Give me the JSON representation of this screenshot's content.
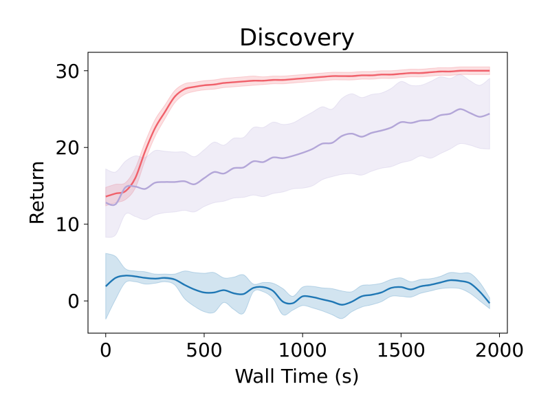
{
  "chart_data": {
    "type": "line",
    "title": "Discovery",
    "xlabel": "Wall Time (s)",
    "ylabel": "Return",
    "xlim": [
      -90,
      2040
    ],
    "ylim": [
      -4.2,
      32.4
    ],
    "xticks": [
      0,
      500,
      1000,
      1500,
      2000
    ],
    "xtick_labels": [
      "0",
      "500",
      "1000",
      "1500",
      "2000"
    ],
    "yticks": [
      0,
      10,
      20,
      30
    ],
    "ytick_labels": [
      "0",
      "10",
      "20",
      "30"
    ],
    "grid": false,
    "legend": "none",
    "series": [
      {
        "name": "red",
        "color": "#f0606a",
        "band_color": "#f0606a",
        "x": [
          0,
          50,
          100,
          150,
          200,
          250,
          300,
          350,
          400,
          450,
          500,
          550,
          600,
          650,
          700,
          750,
          800,
          850,
          900,
          950,
          1000,
          1050,
          1100,
          1150,
          1200,
          1250,
          1300,
          1350,
          1400,
          1450,
          1500,
          1550,
          1600,
          1650,
          1700,
          1750,
          1800,
          1850,
          1900,
          1950
        ],
        "mean": [
          13.6,
          14.0,
          14.3,
          16.0,
          19.5,
          22.5,
          24.6,
          26.6,
          27.6,
          27.9,
          28.1,
          28.2,
          28.4,
          28.5,
          28.6,
          28.7,
          28.7,
          28.8,
          28.8,
          28.9,
          29.0,
          29.1,
          29.2,
          29.3,
          29.3,
          29.3,
          29.4,
          29.4,
          29.5,
          29.5,
          29.6,
          29.7,
          29.7,
          29.8,
          29.9,
          29.9,
          30.0,
          30.0,
          30.0,
          30.0
        ],
        "lower": [
          12.4,
          12.8,
          13.2,
          14.7,
          18.3,
          21.4,
          23.7,
          25.8,
          26.9,
          27.3,
          27.5,
          27.6,
          27.8,
          27.9,
          28.0,
          28.1,
          28.2,
          28.3,
          28.3,
          28.4,
          28.5,
          28.6,
          28.7,
          28.8,
          28.8,
          28.8,
          28.9,
          28.9,
          29.0,
          29.0,
          29.1,
          29.2,
          29.2,
          29.3,
          29.4,
          29.4,
          29.5,
          29.5,
          29.5,
          29.5
        ],
        "upper": [
          14.8,
          15.2,
          15.4,
          17.3,
          20.7,
          23.6,
          25.5,
          27.4,
          28.3,
          28.5,
          28.7,
          28.8,
          29.0,
          29.1,
          29.2,
          29.3,
          29.2,
          29.3,
          29.3,
          29.4,
          29.5,
          29.6,
          29.7,
          29.8,
          29.8,
          29.8,
          29.9,
          29.9,
          30.0,
          30.0,
          30.1,
          30.2,
          30.2,
          30.3,
          30.4,
          30.4,
          30.5,
          30.5,
          30.5,
          30.5
        ]
      },
      {
        "name": "purple",
        "color": "#b3a6d8",
        "band_color": "#b3a6d8",
        "x": [
          0,
          50,
          100,
          150,
          200,
          250,
          300,
          350,
          400,
          450,
          500,
          550,
          600,
          650,
          700,
          750,
          800,
          850,
          900,
          950,
          1000,
          1050,
          1100,
          1150,
          1200,
          1250,
          1300,
          1350,
          1400,
          1450,
          1500,
          1550,
          1600,
          1650,
          1700,
          1750,
          1800,
          1850,
          1900,
          1950
        ],
        "mean": [
          12.8,
          12.6,
          14.8,
          14.9,
          14.6,
          15.4,
          15.5,
          15.5,
          15.6,
          15.2,
          16.0,
          16.8,
          16.6,
          17.3,
          17.4,
          18.2,
          18.1,
          18.7,
          18.6,
          18.9,
          19.3,
          19.8,
          20.5,
          20.6,
          21.5,
          21.8,
          21.4,
          21.9,
          22.2,
          22.6,
          23.3,
          23.2,
          23.5,
          23.6,
          24.2,
          24.4,
          25.0,
          24.5,
          24.0,
          24.4
        ],
        "lower": [
          8.3,
          8.6,
          11.3,
          11.0,
          10.6,
          11.2,
          11.5,
          11.6,
          11.8,
          11.6,
          12.3,
          12.8,
          13.0,
          13.4,
          13.5,
          13.8,
          13.6,
          14.0,
          14.2,
          14.6,
          14.7,
          15.0,
          15.8,
          16.2,
          16.5,
          16.6,
          16.4,
          16.9,
          17.3,
          17.5,
          18.0,
          18.3,
          18.9,
          18.6,
          19.2,
          19.8,
          20.5,
          20.3,
          19.9,
          19.8
        ],
        "upper": [
          17.2,
          16.8,
          18.2,
          18.9,
          18.7,
          19.6,
          19.5,
          19.4,
          19.4,
          18.8,
          19.7,
          20.7,
          20.3,
          21.2,
          21.3,
          22.6,
          22.6,
          23.3,
          23.0,
          23.2,
          23.9,
          24.6,
          25.3,
          25.0,
          26.4,
          27.0,
          26.5,
          26.9,
          27.1,
          27.7,
          28.6,
          28.1,
          28.1,
          28.6,
          29.2,
          29.0,
          29.5,
          28.7,
          28.1,
          29.0
        ]
      },
      {
        "name": "blue",
        "color": "#1f77b4",
        "band_color": "#1f77b4",
        "x": [
          0,
          50,
          100,
          150,
          200,
          250,
          300,
          350,
          400,
          450,
          500,
          550,
          600,
          650,
          700,
          750,
          800,
          850,
          900,
          950,
          1000,
          1050,
          1100,
          1150,
          1200,
          1250,
          1300,
          1350,
          1400,
          1450,
          1500,
          1550,
          1600,
          1650,
          1700,
          1750,
          1800,
          1850,
          1900,
          1950
        ],
        "mean": [
          1.9,
          3.0,
          3.3,
          3.2,
          3.0,
          2.9,
          3.0,
          2.8,
          2.1,
          1.5,
          1.1,
          1.1,
          1.4,
          1.0,
          0.9,
          1.7,
          1.8,
          1.3,
          -0.1,
          -0.3,
          0.6,
          0.5,
          0.2,
          -0.1,
          -0.5,
          -0.1,
          0.6,
          0.8,
          1.1,
          1.7,
          1.8,
          1.5,
          1.9,
          2.1,
          2.4,
          2.7,
          2.6,
          2.3,
          1.2,
          -0.3
        ],
        "lower": [
          -2.4,
          0.2,
          2.4,
          2.5,
          2.2,
          2.3,
          2.5,
          2.1,
          0.3,
          -0.7,
          -1.4,
          -1.5,
          -0.2,
          -1.1,
          -1.6,
          1.2,
          1.2,
          0.3,
          -1.8,
          -1.2,
          -0.6,
          -0.9,
          -1.3,
          -1.8,
          -2.3,
          -1.4,
          -0.8,
          -0.5,
          -0.1,
          0.6,
          0.6,
          0.5,
          1.0,
          1.3,
          1.6,
          1.7,
          1.6,
          1.0,
          0.0,
          -1.0
        ],
        "upper": [
          6.2,
          5.8,
          4.2,
          3.9,
          3.8,
          3.5,
          3.5,
          3.5,
          3.9,
          3.7,
          3.6,
          3.7,
          3.0,
          3.1,
          3.4,
          2.2,
          2.4,
          2.3,
          1.6,
          0.6,
          1.8,
          1.9,
          1.7,
          1.6,
          1.3,
          1.2,
          2.0,
          2.1,
          2.3,
          2.8,
          3.0,
          2.5,
          2.8,
          2.9,
          3.2,
          3.7,
          3.6,
          3.6,
          2.4,
          0.4
        ]
      }
    ]
  }
}
